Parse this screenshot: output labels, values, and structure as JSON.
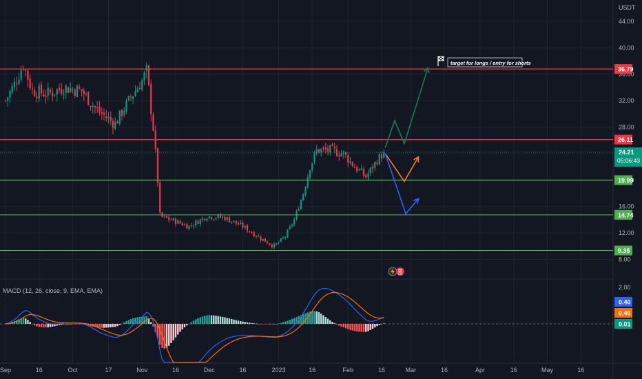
{
  "currency": "USDT",
  "price_axis": {
    "min": 8,
    "max": 44,
    "ticks": [
      "44.00",
      "40.00",
      "36.00",
      "32.00",
      "28.00",
      "24.00",
      "20.00",
      "16.00",
      "12.00",
      "8.00"
    ],
    "tick_values": [
      44,
      40,
      36,
      32,
      28,
      24,
      20,
      16,
      12,
      8
    ]
  },
  "levels": [
    {
      "value": 36.79,
      "label": "36.79",
      "color": "#f23645"
    },
    {
      "value": 26.11,
      "label": "26.11",
      "color": "#f23645"
    },
    {
      "value": 19.99,
      "label": "19.99",
      "color": "#4caf50"
    },
    {
      "value": 14.74,
      "label": "14.74",
      "color": "#4caf50"
    },
    {
      "value": 9.35,
      "label": "9.35",
      "color": "#4caf50"
    }
  ],
  "last_price": {
    "value": 24.21,
    "label": "24.21",
    "countdown": "05:06:43",
    "color": "#089981"
  },
  "annotation": {
    "text": "target for longs / entry for shorts"
  },
  "projections": [
    {
      "name": "green-path",
      "color": "#1b7a4b",
      "points": [
        [
          0,
          24.9
        ],
        [
          6,
          29.0
        ],
        [
          12,
          25.5
        ],
        [
          27,
          37.0
        ]
      ]
    },
    {
      "name": "orange-path",
      "color": "#ff7a1a",
      "points": [
        [
          0,
          24.0
        ],
        [
          12,
          19.8
        ],
        [
          21,
          23.5
        ]
      ]
    },
    {
      "name": "blue-path",
      "color": "#2962ff",
      "points": [
        [
          0,
          24.0
        ],
        [
          13,
          14.9
        ],
        [
          21,
          17.2
        ]
      ]
    }
  ],
  "time_axis": {
    "labels": [
      "Sep",
      "16",
      "Oct",
      "17",
      "Nov",
      "16",
      "Dec",
      "16",
      "2023",
      "16",
      "Feb",
      "16",
      "Mar",
      "16",
      "Apr",
      "16",
      "May",
      "16"
    ],
    "label_days": [
      0,
      15,
      30,
      46,
      61,
      76,
      91,
      106,
      122,
      137,
      153,
      168,
      181,
      196,
      212,
      227,
      242,
      257
    ]
  },
  "macd": {
    "legend": "MACD (12, 26, close, 9, EMA, EMA)",
    "axis_tick": "2.00",
    "labels": [
      {
        "text": "0.40",
        "color": "#2962ff"
      },
      {
        "text": "0.40",
        "color": "#ff6d00"
      },
      {
        "text": "0.01",
        "color": "#089981"
      }
    ],
    "colors": {
      "pos_strong": "#26a69a",
      "pos_weak": "#b2dfdb",
      "neg_strong": "#ff5252",
      "neg_weak": "#ffcdd2",
      "macd_line": "#2962ff",
      "signal_line": "#ff6d00"
    }
  },
  "colors": {
    "up": "#089981",
    "down": "#f23645",
    "grid": "#1e222d",
    "axis_text": "#b2b5be",
    "background": "#131722"
  },
  "chart_data": {
    "type": "candlestick",
    "y_unit": "USDT",
    "x_unit": "daily candles, Sep 2022 – Feb 2023",
    "series": [
      {
        "name": "price-close",
        "points": [
          {
            "x": "2022-09-01",
            "y": 32.0
          },
          {
            "x": "2022-09-05",
            "y": 34.5
          },
          {
            "x": "2022-09-09",
            "y": 37.5
          },
          {
            "x": "2022-09-13",
            "y": 33.5
          },
          {
            "x": "2022-09-20",
            "y": 33.0
          },
          {
            "x": "2022-09-27",
            "y": 34.0
          },
          {
            "x": "2022-10-05",
            "y": 33.5
          },
          {
            "x": "2022-10-12",
            "y": 30.5
          },
          {
            "x": "2022-10-20",
            "y": 28.5
          },
          {
            "x": "2022-10-26",
            "y": 32.0
          },
          {
            "x": "2022-11-01",
            "y": 35.0
          },
          {
            "x": "2022-11-03",
            "y": 36.5
          },
          {
            "x": "2022-11-06",
            "y": 28.0
          },
          {
            "x": "2022-11-08",
            "y": 20.0
          },
          {
            "x": "2022-11-09",
            "y": 14.5
          },
          {
            "x": "2022-11-14",
            "y": 14.0
          },
          {
            "x": "2022-11-22",
            "y": 13.0
          },
          {
            "x": "2022-11-30",
            "y": 14.5
          },
          {
            "x": "2022-12-08",
            "y": 14.3
          },
          {
            "x": "2022-12-16",
            "y": 13.0
          },
          {
            "x": "2022-12-24",
            "y": 11.2
          },
          {
            "x": "2022-12-30",
            "y": 10.0
          },
          {
            "x": "2023-01-04",
            "y": 11.5
          },
          {
            "x": "2023-01-08",
            "y": 14.0
          },
          {
            "x": "2023-01-12",
            "y": 18.0
          },
          {
            "x": "2023-01-15",
            "y": 22.0
          },
          {
            "x": "2023-01-18",
            "y": 24.5
          },
          {
            "x": "2023-01-24",
            "y": 24.5
          },
          {
            "x": "2023-01-30",
            "y": 24.0
          },
          {
            "x": "2023-02-04",
            "y": 22.0
          },
          {
            "x": "2023-02-09",
            "y": 20.5
          },
          {
            "x": "2023-02-14",
            "y": 23.0
          },
          {
            "x": "2023-02-17",
            "y": 24.21
          }
        ]
      }
    ]
  }
}
